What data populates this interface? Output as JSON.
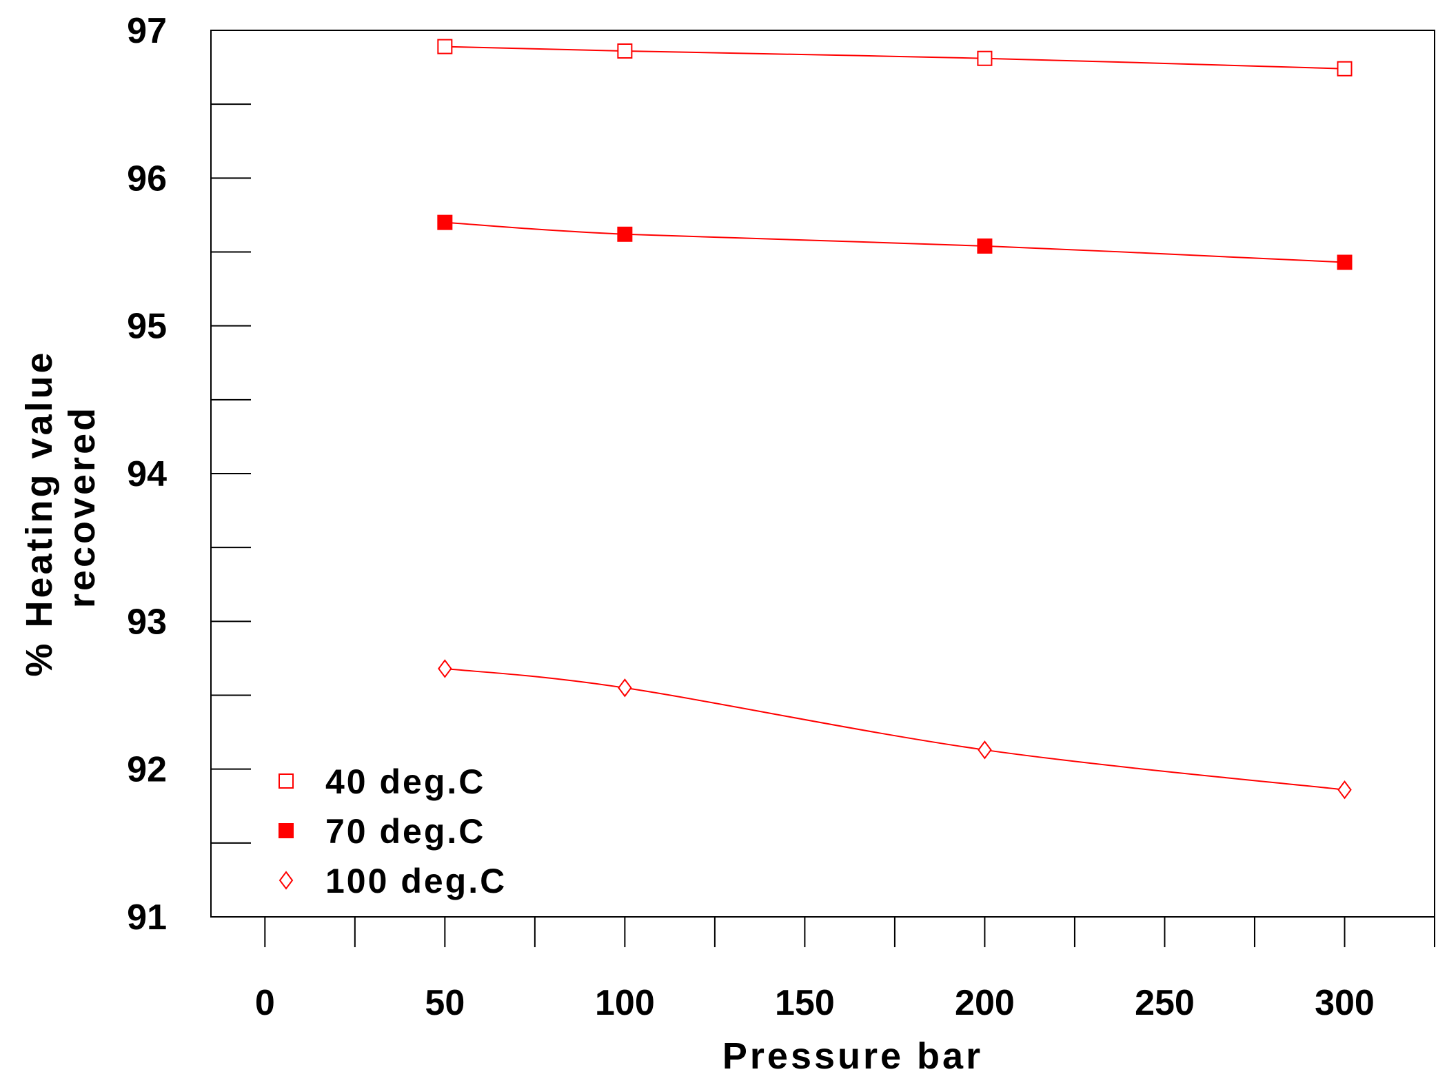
{
  "chart_data": {
    "type": "line",
    "title": "",
    "xlabel": "Pressure  bar",
    "ylabel": [
      "% Heating value",
      "recovered"
    ],
    "xlim": [
      -15,
      325
    ],
    "ylim": [
      91,
      97
    ],
    "xticks": [
      0,
      50,
      100,
      150,
      200,
      250,
      300
    ],
    "xtick_labels": [
      "0",
      "50",
      "100",
      "150",
      "200",
      "250",
      "300"
    ],
    "xminor": [
      25,
      75,
      125,
      175,
      225,
      275,
      325
    ],
    "yticks": [
      91,
      92,
      93,
      94,
      95,
      96,
      97
    ],
    "ytick_labels": [
      "91",
      "92",
      "93",
      "94",
      "95",
      "96",
      "97"
    ],
    "yminor": [
      91.5,
      92.5,
      93.5,
      94.5,
      95.5,
      96.5
    ],
    "grid": false,
    "legend_position": "bottom-left",
    "series": [
      {
        "name": "40  deg.C",
        "marker": "open-square",
        "color": "#ff0000",
        "x": [
          50,
          100,
          200,
          300
        ],
        "y": [
          96.89,
          96.86,
          96.81,
          96.74
        ]
      },
      {
        "name": "70  deg.C",
        "marker": "filled-square",
        "color": "#ff0000",
        "x": [
          50,
          100,
          200,
          300
        ],
        "y": [
          95.7,
          95.62,
          95.54,
          95.43
        ]
      },
      {
        "name": "100  deg.C",
        "marker": "open-diamond",
        "color": "#ff0000",
        "x": [
          50,
          100,
          200,
          300
        ],
        "y": [
          92.68,
          92.55,
          92.13,
          91.86
        ]
      }
    ]
  }
}
